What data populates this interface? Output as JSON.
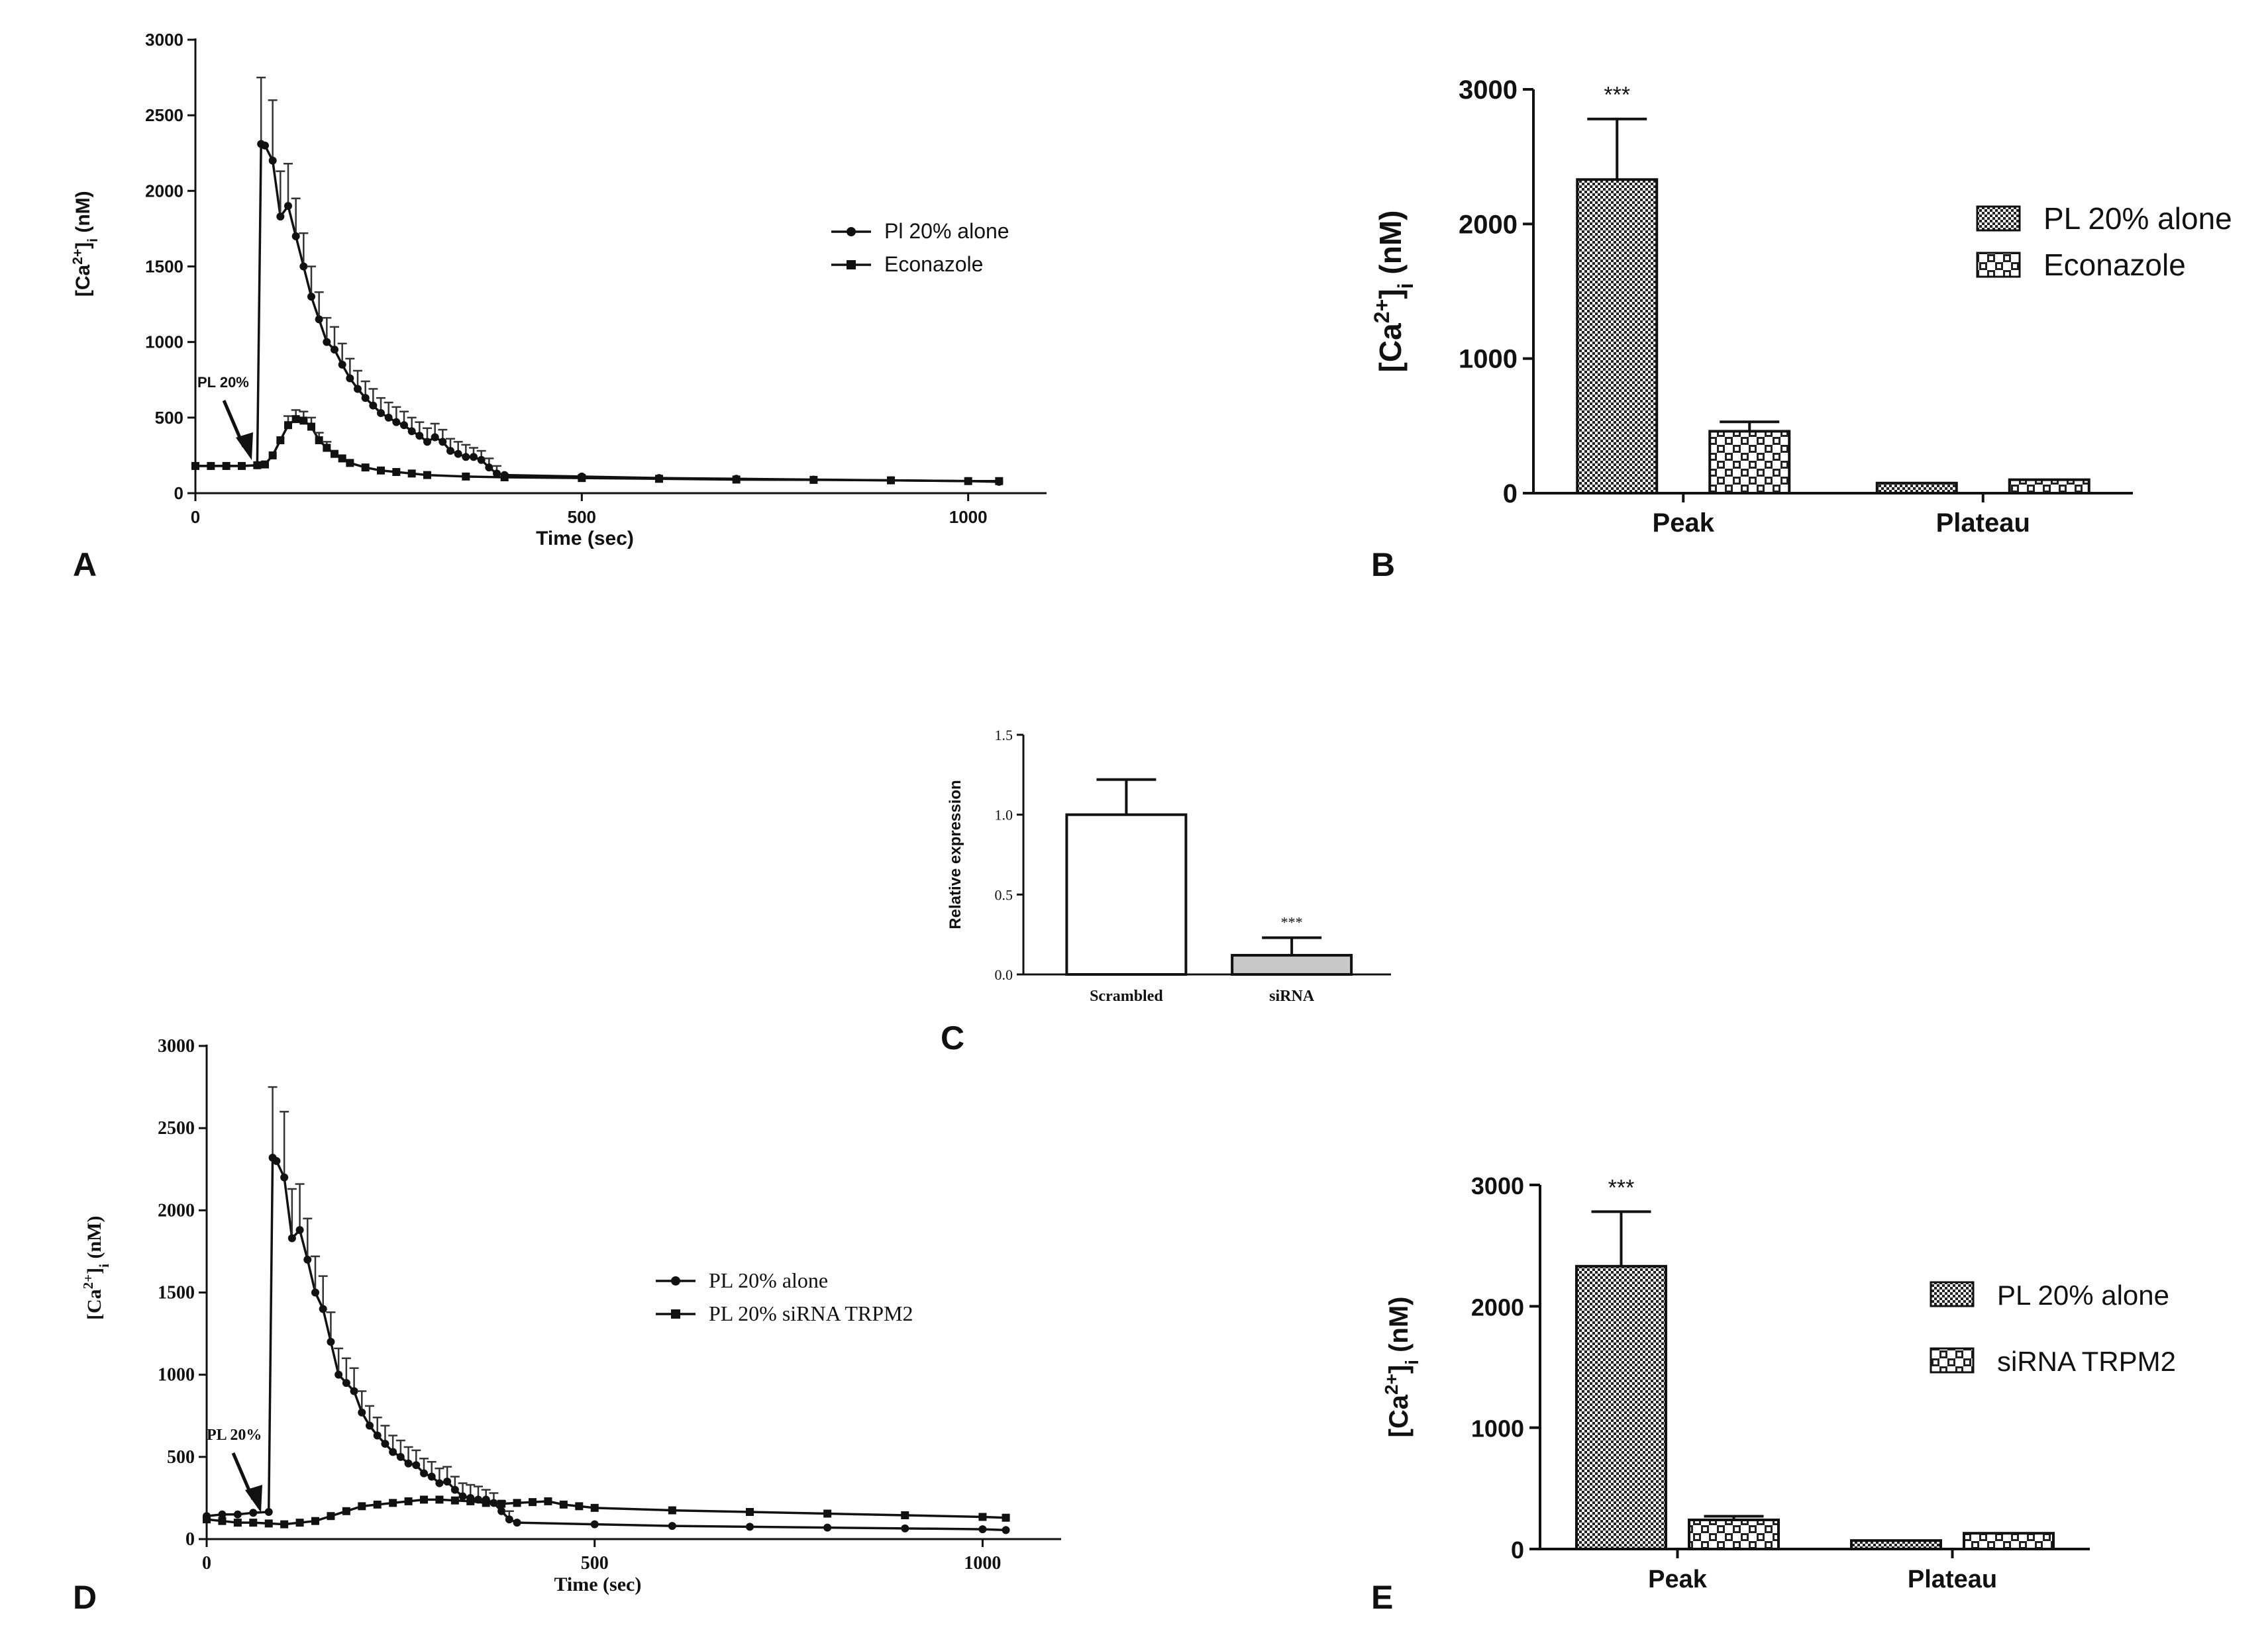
{
  "colors": {
    "ink": "#111111",
    "gray_bar": "#c8c8c8",
    "white": "#ffffff"
  },
  "chart_data": [
    {
      "panel": "A",
      "type": "line",
      "xlabel": "Time (sec)",
      "ylabel": "[Ca2+]i (nM)",
      "ylabel_parts": {
        "base": "[Ca",
        "sup": "2+",
        "mid": "]",
        "sub": "i",
        "tail": " (nM)"
      },
      "xlim": [
        0,
        1050
      ],
      "ylim": [
        0,
        3000
      ],
      "xticks": [
        0,
        500,
        1000
      ],
      "yticks": [
        0,
        500,
        1000,
        1500,
        2000,
        2500,
        3000
      ],
      "annotation": "PL 20%",
      "legend": [
        "Pl 20% alone",
        "Econazole"
      ],
      "series": [
        {
          "name": "Pl 20% alone",
          "marker": "circle",
          "x": [
            0,
            20,
            40,
            60,
            80,
            85,
            90,
            100,
            110,
            120,
            130,
            140,
            150,
            160,
            170,
            180,
            190,
            200,
            210,
            220,
            230,
            240,
            250,
            260,
            270,
            280,
            290,
            300,
            310,
            320,
            330,
            340,
            350,
            360,
            370,
            380,
            390,
            400,
            500,
            600,
            700,
            800,
            900,
            1000,
            1040
          ],
          "y": [
            180,
            180,
            180,
            180,
            185,
            2310,
            2300,
            2200,
            1830,
            1900,
            1700,
            1500,
            1300,
            1150,
            1000,
            950,
            850,
            760,
            690,
            630,
            580,
            530,
            500,
            470,
            450,
            410,
            380,
            340,
            370,
            340,
            280,
            260,
            240,
            240,
            220,
            170,
            130,
            120,
            110,
            100,
            95,
            90,
            85,
            80,
            75
          ],
          "err": [
            0,
            0,
            0,
            0,
            0,
            440,
            0,
            400,
            300,
            280,
            250,
            220,
            200,
            180,
            160,
            150,
            140,
            130,
            120,
            110,
            110,
            100,
            100,
            100,
            90,
            90,
            90,
            90,
            90,
            80,
            80,
            80,
            80,
            60,
            60,
            60,
            50,
            0,
            0,
            0,
            0,
            0,
            0,
            0,
            0
          ]
        },
        {
          "name": "Econazole",
          "marker": "square",
          "x": [
            0,
            20,
            40,
            60,
            80,
            90,
            100,
            110,
            120,
            130,
            140,
            150,
            160,
            170,
            180,
            190,
            200,
            220,
            240,
            260,
            280,
            300,
            350,
            400,
            500,
            600,
            700,
            800,
            900,
            1000,
            1040
          ],
          "y": [
            180,
            180,
            180,
            180,
            185,
            190,
            250,
            350,
            450,
            490,
            480,
            440,
            350,
            300,
            260,
            230,
            200,
            170,
            150,
            140,
            130,
            120,
            110,
            105,
            100,
            95,
            90,
            88,
            85,
            80,
            80
          ],
          "err": [
            0,
            0,
            0,
            0,
            0,
            0,
            0,
            0,
            60,
            60,
            60,
            60,
            50,
            40,
            0,
            0,
            0,
            0,
            0,
            0,
            0,
            0,
            0,
            0,
            0,
            0,
            0,
            0,
            0,
            0,
            0
          ]
        }
      ]
    },
    {
      "panel": "B",
      "type": "bar",
      "ylabel": "[Ca2+]i (nM)",
      "ylabel_parts": {
        "base": "[Ca",
        "sup": "2+",
        "mid": "]",
        "sub": "i",
        "tail": " (nM)"
      },
      "categories": [
        "Peak",
        "Plateau"
      ],
      "ylim": [
        0,
        3000
      ],
      "yticks": [
        0,
        1000,
        2000,
        3000
      ],
      "series": [
        {
          "name": "PL 20% alone",
          "values": [
            2330,
            75
          ],
          "errors": [
            450,
            0
          ],
          "pattern": "dense"
        },
        {
          "name": "Econazole",
          "values": [
            460,
            100
          ],
          "errors": [
            70,
            0
          ],
          "pattern": "checker"
        }
      ],
      "annotations": [
        "***"
      ]
    },
    {
      "panel": "C",
      "type": "bar",
      "ylabel": "Relative expression",
      "categories": [
        "Scrambled",
        "siRNA"
      ],
      "values": [
        1.0,
        0.12
      ],
      "errors": [
        0.22,
        0.11
      ],
      "ylim": [
        0,
        1.5
      ],
      "yticks": [
        "0.0",
        "0.5",
        "1.0",
        "1.5"
      ],
      "annotations": [
        "***"
      ]
    },
    {
      "panel": "D",
      "type": "line",
      "xlabel": "Time (sec)",
      "ylabel": "[Ca2+]i (nM)",
      "ylabel_parts": {
        "base": "[Ca",
        "sup": "2+",
        "mid": "]",
        "sub": "i",
        "tail": " (nM)"
      },
      "xlim": [
        0,
        1050
      ],
      "ylim": [
        0,
        3000
      ],
      "xticks": [
        0,
        500,
        1000
      ],
      "yticks": [
        0,
        500,
        1000,
        1500,
        2000,
        2500,
        3000
      ],
      "annotation": "PL 20%",
      "legend": [
        "PL 20% alone",
        "PL 20% siRNA TRPM2"
      ],
      "series": [
        {
          "name": "PL 20% alone",
          "marker": "circle",
          "x": [
            0,
            20,
            40,
            60,
            80,
            85,
            90,
            100,
            110,
            120,
            130,
            140,
            150,
            160,
            170,
            180,
            190,
            200,
            210,
            220,
            230,
            240,
            250,
            260,
            270,
            280,
            290,
            300,
            310,
            320,
            330,
            340,
            350,
            360,
            370,
            380,
            390,
            400,
            500,
            600,
            700,
            800,
            900,
            1000,
            1030
          ],
          "y": [
            140,
            150,
            150,
            160,
            165,
            2320,
            2300,
            2200,
            1830,
            1880,
            1700,
            1500,
            1400,
            1200,
            1000,
            950,
            900,
            770,
            690,
            630,
            580,
            530,
            500,
            460,
            450,
            400,
            380,
            340,
            350,
            300,
            260,
            250,
            240,
            240,
            220,
            170,
            120,
            100,
            90,
            80,
            75,
            70,
            65,
            60,
            55
          ],
          "err": [
            0,
            0,
            0,
            0,
            0,
            430,
            0,
            400,
            300,
            280,
            250,
            220,
            200,
            180,
            160,
            150,
            140,
            130,
            120,
            110,
            110,
            100,
            100,
            100,
            90,
            90,
            90,
            90,
            90,
            80,
            80,
            80,
            80,
            60,
            60,
            60,
            50,
            0,
            0,
            0,
            0,
            0,
            0,
            0,
            0
          ]
        },
        {
          "name": "PL 20% siRNA TRPM2",
          "marker": "square",
          "x": [
            0,
            20,
            40,
            60,
            80,
            100,
            120,
            140,
            160,
            180,
            200,
            220,
            240,
            260,
            280,
            300,
            320,
            340,
            360,
            380,
            400,
            420,
            440,
            460,
            480,
            500,
            600,
            700,
            800,
            900,
            1000,
            1030
          ],
          "y": [
            120,
            110,
            100,
            100,
            95,
            90,
            100,
            110,
            140,
            170,
            200,
            210,
            220,
            230,
            240,
            240,
            235,
            230,
            220,
            215,
            220,
            225,
            230,
            210,
            200,
            190,
            175,
            165,
            155,
            145,
            135,
            130
          ],
          "err": [
            0,
            0,
            0,
            0,
            0,
            0,
            0,
            0,
            0,
            0,
            0,
            0,
            0,
            0,
            0,
            0,
            0,
            0,
            0,
            0,
            0,
            0,
            0,
            0,
            0,
            0,
            0,
            0,
            0,
            0,
            0,
            0
          ]
        }
      ]
    },
    {
      "panel": "E",
      "type": "bar",
      "ylabel": "[Ca2+]i (nM)",
      "ylabel_parts": {
        "base": "[Ca",
        "sup": "2+",
        "mid": "]",
        "sub": "i",
        "tail": " (nM)"
      },
      "categories": [
        "Peak",
        "Plateau"
      ],
      "ylim": [
        0,
        3000
      ],
      "yticks": [
        0,
        1000,
        2000,
        3000
      ],
      "series": [
        {
          "name": "PL 20% alone",
          "values": [
            2330,
            70
          ],
          "errors": [
            450,
            0
          ],
          "pattern": "dense"
        },
        {
          "name": "siRNA TRPM2",
          "values": [
            240,
            130
          ],
          "errors": [
            30,
            0
          ],
          "pattern": "checker"
        }
      ],
      "annotations": [
        "***"
      ]
    }
  ],
  "panel_labels": [
    "A",
    "B",
    "C",
    "D",
    "E"
  ]
}
